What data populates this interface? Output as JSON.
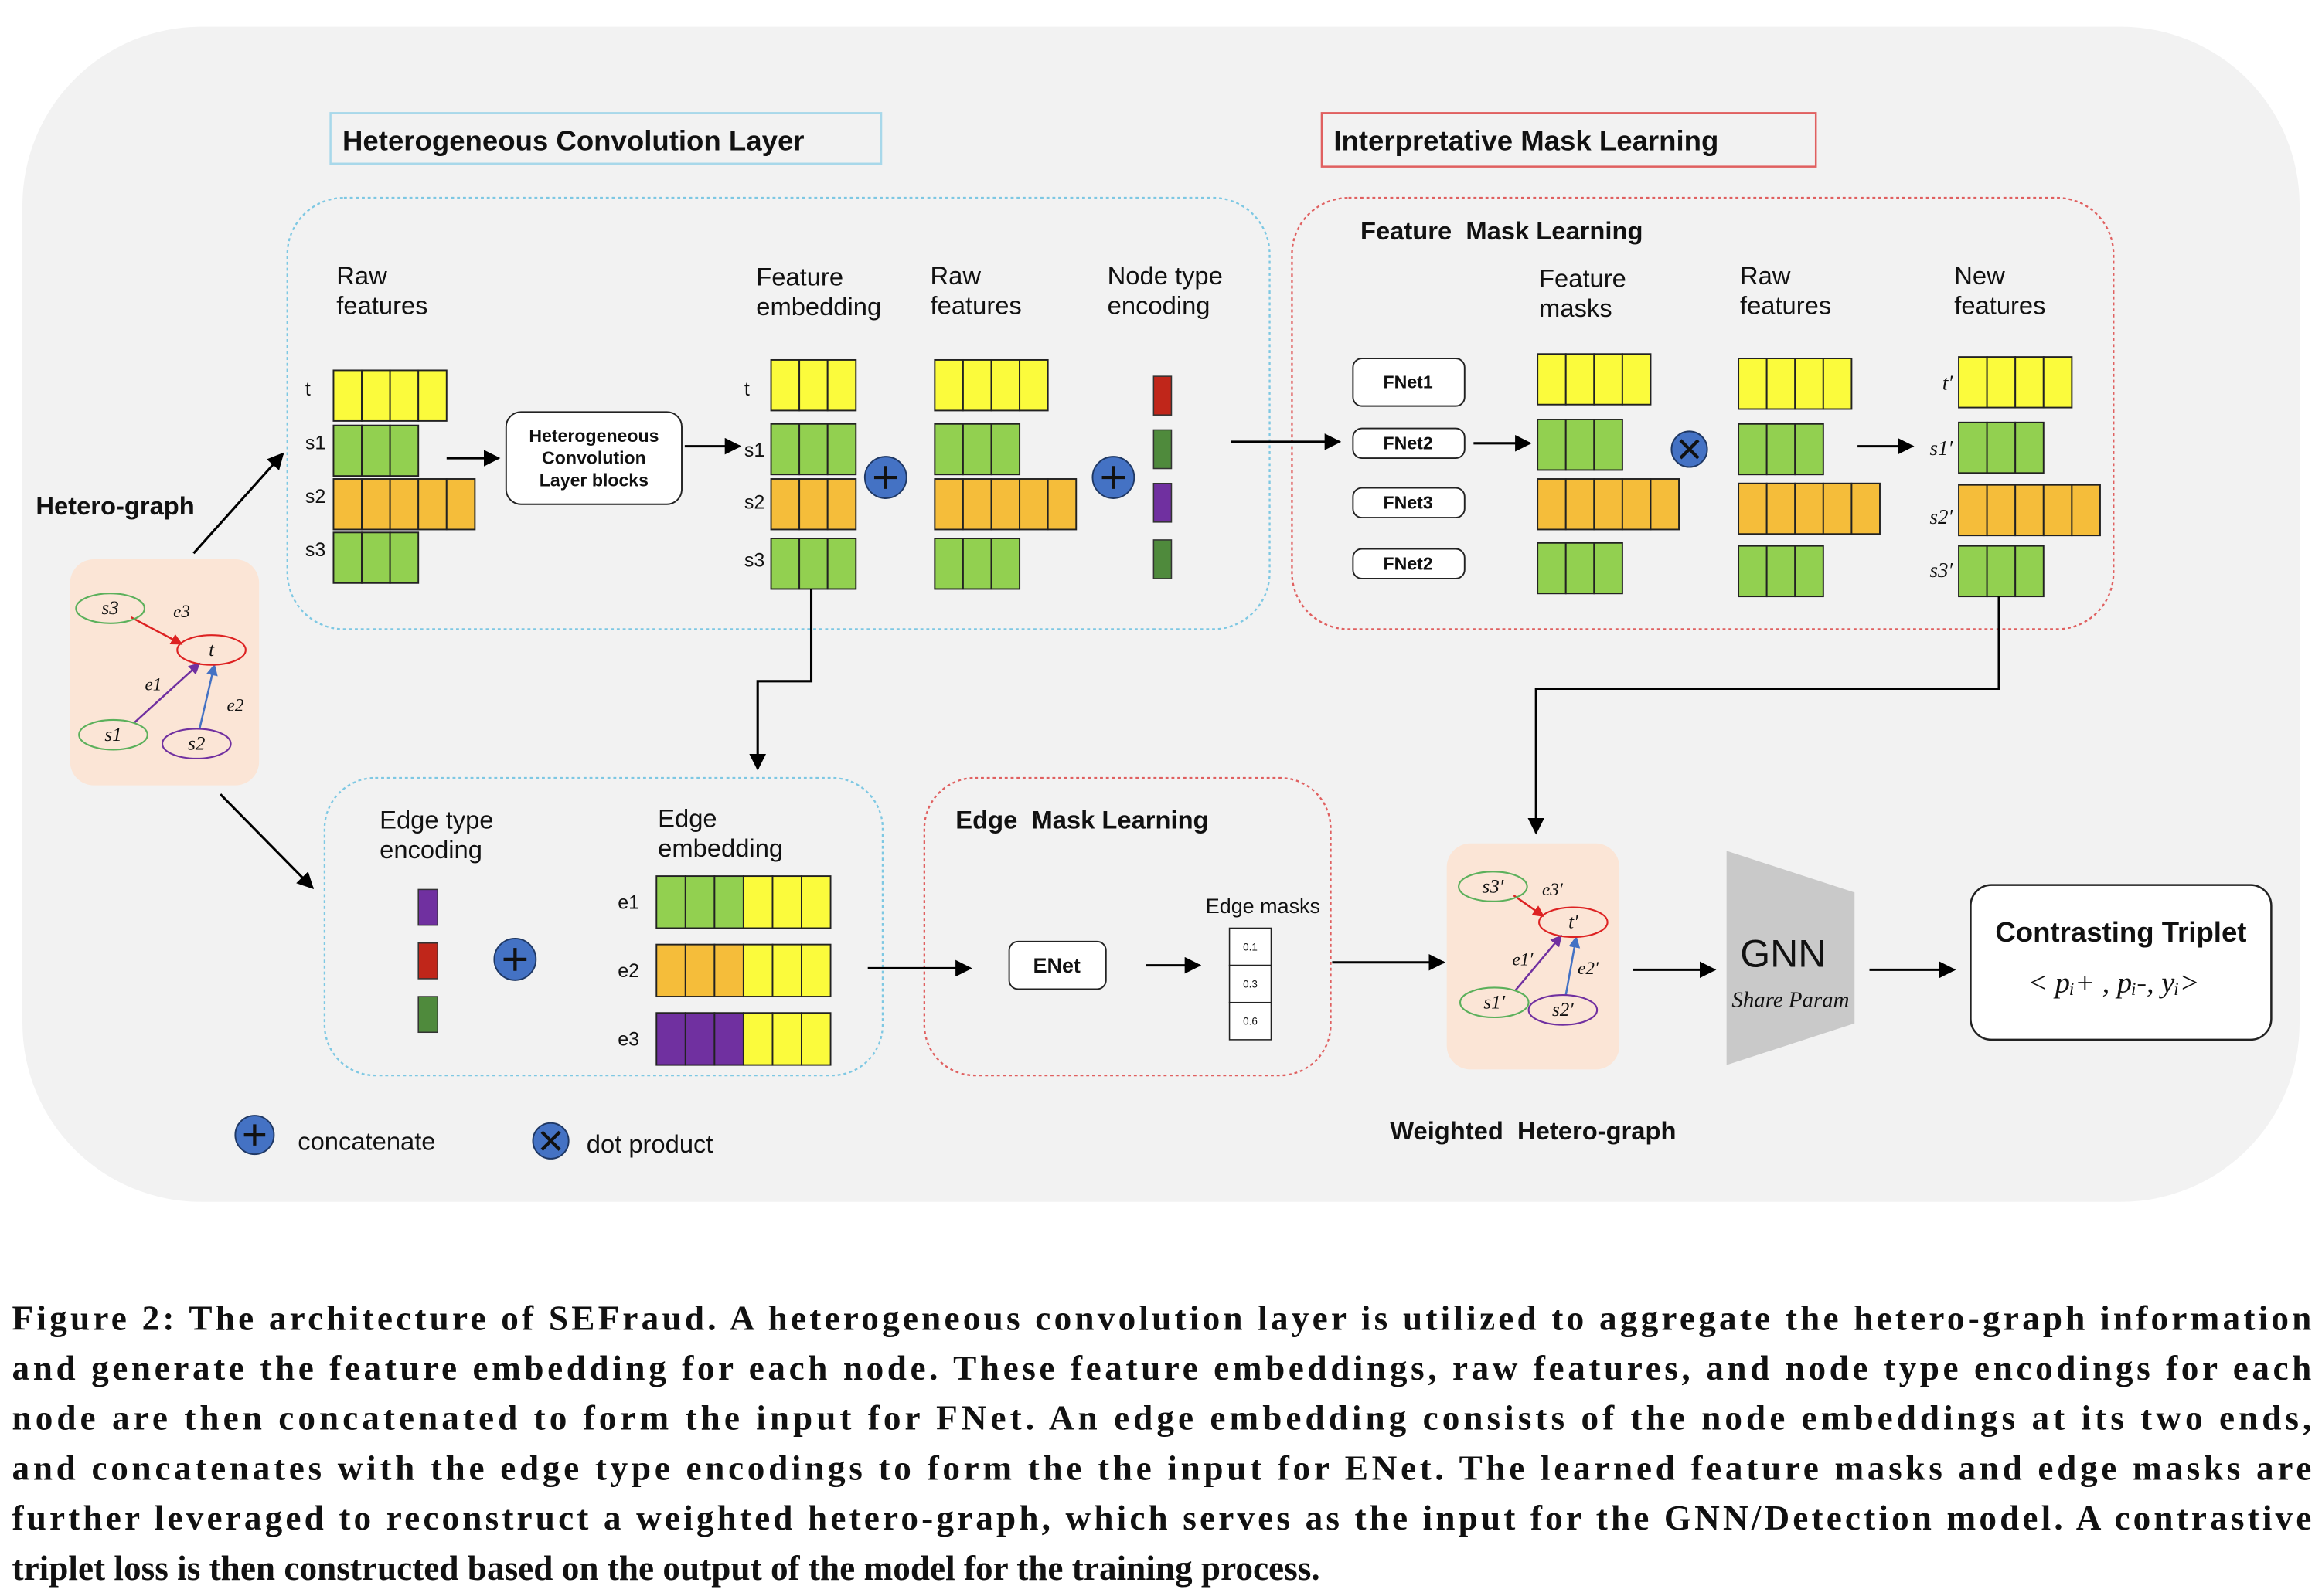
{
  "titles": {
    "hetero_conv": "Heterogeneous Convolution Layer",
    "mask_learning": "Interpretative Mask Learning"
  },
  "hetero_graph": {
    "label": "Hetero-graph",
    "nodes": [
      "s3",
      "t",
      "s1",
      "s2"
    ],
    "edges": [
      "e3",
      "e1",
      "e2"
    ]
  },
  "conv": {
    "raw_features": [
      "Raw",
      "features"
    ],
    "rows": [
      "t",
      "s1",
      "s2",
      "s3"
    ],
    "block": [
      "Heterogeneous",
      "Convolution",
      "Layer blocks"
    ],
    "feature_embedding": [
      "Feature",
      "embedding"
    ],
    "embedding_rows": [
      "t",
      "s1",
      "s2",
      "s3"
    ],
    "raw_features_2": [
      "Raw",
      "features"
    ],
    "node_type_encoding": [
      "Node type",
      "encoding"
    ]
  },
  "feature_mask": {
    "title": "Feature  Mask Learning",
    "fnets": [
      "FNet1",
      "FNet2",
      "FNet3",
      "FNet2"
    ],
    "feature_masks": [
      "Feature",
      "masks"
    ],
    "raw_features": [
      "Raw",
      "features"
    ],
    "new_features": [
      "New",
      "features"
    ],
    "rows": [
      "t′",
      "s1′",
      "s2′",
      "s3′"
    ]
  },
  "edge": {
    "edge_type_encoding": [
      "Edge type",
      "encoding"
    ],
    "edge_embedding": [
      "Edge",
      "embedding"
    ],
    "rows": [
      "e1",
      "e2",
      "e3"
    ]
  },
  "edge_mask": {
    "title": "Edge  Mask Learning",
    "enet": "ENet",
    "edge_masks": "Edge masks",
    "masks": [
      0.1,
      0.3,
      0.6
    ]
  },
  "weighted_graph": {
    "label": "Weighted  Hetero-graph",
    "nodes": [
      "s3′",
      "t′",
      "s1′",
      "s2′"
    ],
    "edges": [
      "e3′",
      "e1′",
      "e2′"
    ]
  },
  "gnn": {
    "label": "GNN",
    "sub": "Share Param"
  },
  "triplet": {
    "title": "Contrasting Triplet",
    "formula": "< pᵢ+ , pᵢ-, yᵢ>"
  },
  "legend": {
    "concatenate": "concatenate",
    "dot_product": "dot product"
  },
  "caption": [
    "Figure 2: The architecture of SEFraud. A heterogeneous convolution layer is utilized to aggregate the hetero-graph information",
    "and generate the feature embedding for each node. These feature embeddings, raw features, and node type encodings for each",
    "node are then concatenated to form the input for FNet. An edge embedding consists of the node embeddings at its two ends,",
    "and concatenates with the edge type encodings to form the the input for ENet. The learned feature masks and edge masks are",
    "further leveraged to reconstruct a weighted hetero-graph, which serves as the input for the GNN/Detection model. A contrastive",
    "triplet loss is then constructed based on the output of the model for the training process."
  ]
}
